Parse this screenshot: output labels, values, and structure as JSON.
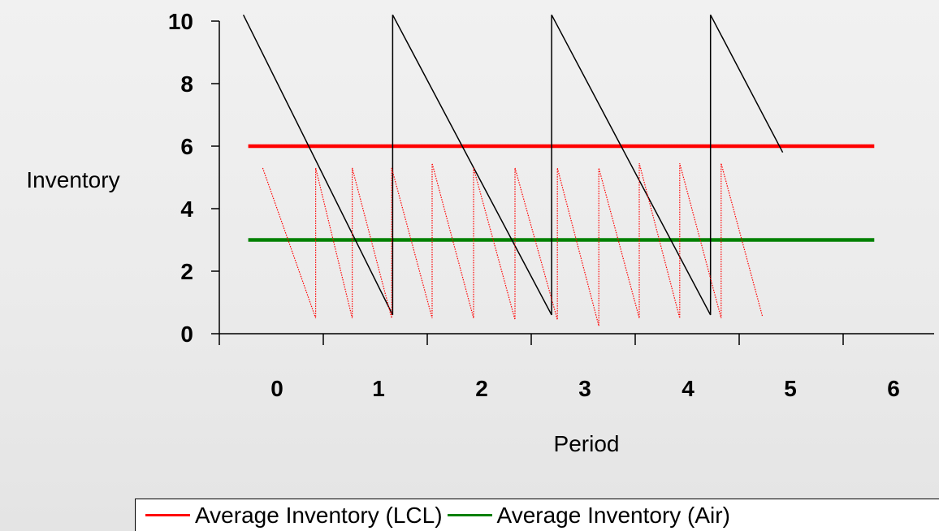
{
  "chart_data": {
    "type": "line",
    "xlabel": "Period",
    "ylabel": "Inventory",
    "x_ticks": [
      "0",
      "1",
      "2",
      "3",
      "4",
      "5",
      "6"
    ],
    "y_ticks": [
      "0",
      "2",
      "4",
      "6",
      "8",
      "10"
    ],
    "ylim": [
      0,
      10
    ],
    "xlim": [
      -0.8,
      6.2
    ],
    "grid": false,
    "legend_position": "bottom",
    "series": [
      {
        "name": "Average Inventory (LCL)",
        "color": "#ff0000",
        "style": "solid-thick",
        "x": [
          -0.5,
          6.0
        ],
        "y": [
          6.0,
          6.0
        ]
      },
      {
        "name": "Average Inventory (Air)",
        "color": "#008000",
        "style": "solid-thick",
        "x": [
          -0.5,
          6.0
        ],
        "y": [
          3.0,
          3.0
        ]
      },
      {
        "color": "#000000",
        "style": "solid-thin",
        "x": [
          -0.55,
          1.0,
          1.0,
          2.65,
          2.65,
          4.3,
          4.3,
          5.05
        ],
        "y": [
          10.2,
          0.6,
          10.2,
          0.6,
          10.2,
          0.6,
          10.2,
          5.8
        ]
      },
      {
        "color": "#ff0000",
        "style": "dotted",
        "x": [
          -0.35,
          0.2,
          0.2,
          0.58,
          0.58,
          0.99,
          0.99,
          1.41,
          1.41,
          1.84,
          1.84,
          2.27,
          2.27,
          2.71,
          2.71,
          3.14,
          3.14,
          3.56,
          3.56,
          3.98,
          3.98,
          4.41,
          4.41,
          4.84
        ],
        "y": [
          5.3,
          0.5,
          5.3,
          0.5,
          5.3,
          0.5,
          5.3,
          0.5,
          5.45,
          0.5,
          5.3,
          0.45,
          5.3,
          0.45,
          5.3,
          0.25,
          5.3,
          0.5,
          5.45,
          0.5,
          5.45,
          0.5,
          5.45,
          0.55
        ]
      }
    ],
    "legend": [
      {
        "label": "Average Inventory (LCL)",
        "color": "#ff0000"
      },
      {
        "label": "Average Inventory (Air)",
        "color": "#008000"
      }
    ]
  }
}
